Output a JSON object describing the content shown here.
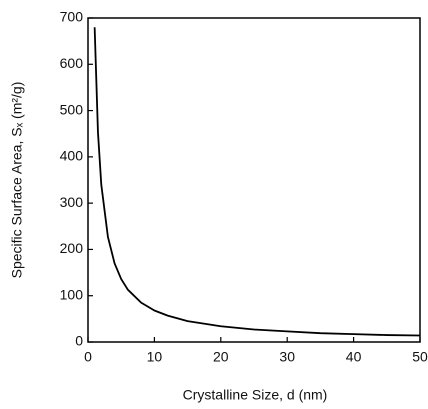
{
  "chart_data": {
    "type": "line",
    "x_label": "Crystalline Size, d (nm)",
    "y_label": "Specific Surface Area, Sₓ (m²/g)",
    "x": [
      1,
      1.5,
      2,
      3,
      4,
      5,
      6,
      8,
      10,
      12,
      15,
      20,
      25,
      30,
      35,
      40,
      45,
      50
    ],
    "series": [
      {
        "color": "#000000",
        "values": [
          680,
          453,
          340,
          227,
          170,
          136,
          113,
          85,
          68,
          57,
          45,
          34,
          27,
          23,
          19,
          17,
          15,
          14
        ]
      }
    ],
    "xlim": [
      0,
      50
    ],
    "xticks": [
      0,
      10,
      20,
      30,
      40,
      50
    ],
    "ylim": [
      0,
      700
    ],
    "yticks": [
      0,
      100,
      200,
      300,
      400,
      500,
      600,
      700
    ],
    "grid": false
  }
}
